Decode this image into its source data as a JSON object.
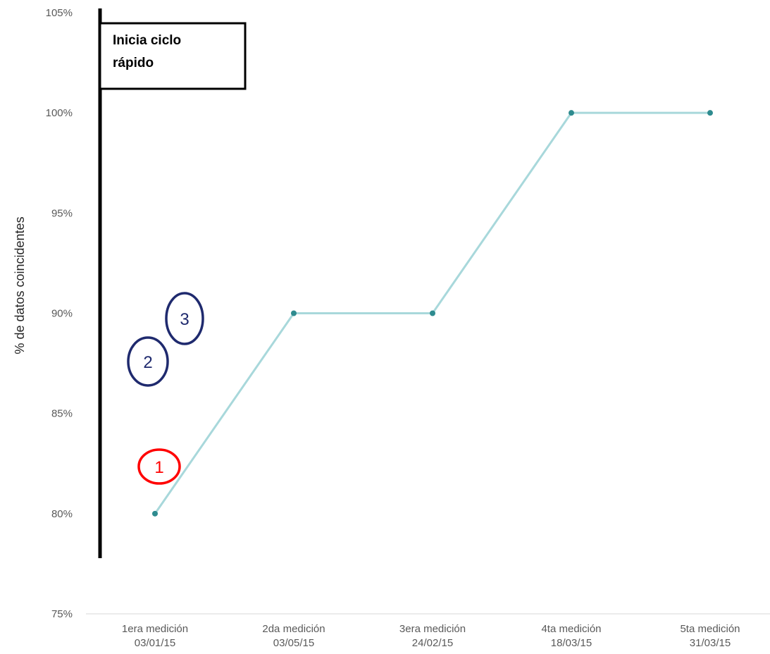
{
  "chart_data": {
    "type": "line",
    "title": "",
    "xlabel": "",
    "ylabel": "% de datos coincidentes",
    "ylim": [
      75,
      105
    ],
    "yticks": [
      "75%",
      "80%",
      "85%",
      "90%",
      "95%",
      "100%",
      "105%"
    ],
    "y_tick_values": [
      75,
      80,
      85,
      90,
      95,
      100,
      105
    ],
    "grid": false,
    "legend": "none",
    "categories": [
      [
        "1era medición",
        "03/01/15"
      ],
      [
        "2da medición",
        "03/05/15"
      ],
      [
        "3era medición",
        "24/02/15"
      ],
      [
        "4ta medición",
        "18/03/15"
      ],
      [
        "5ta medición",
        "31/03/15"
      ]
    ],
    "series": [
      {
        "values": [
          80,
          90,
          90,
          100,
          100
        ],
        "line_color": "#a8d8db",
        "marker_color": "#2e8b8f"
      }
    ],
    "annotations": {
      "callout": {
        "lines": [
          "Inicia ciclo",
          "rápido"
        ]
      },
      "markers": [
        {
          "label": "1",
          "color": "#ff0000"
        },
        {
          "label": "2",
          "color": "#1f2a6e"
        },
        {
          "label": "3",
          "color": "#1f2a6e"
        }
      ]
    }
  }
}
